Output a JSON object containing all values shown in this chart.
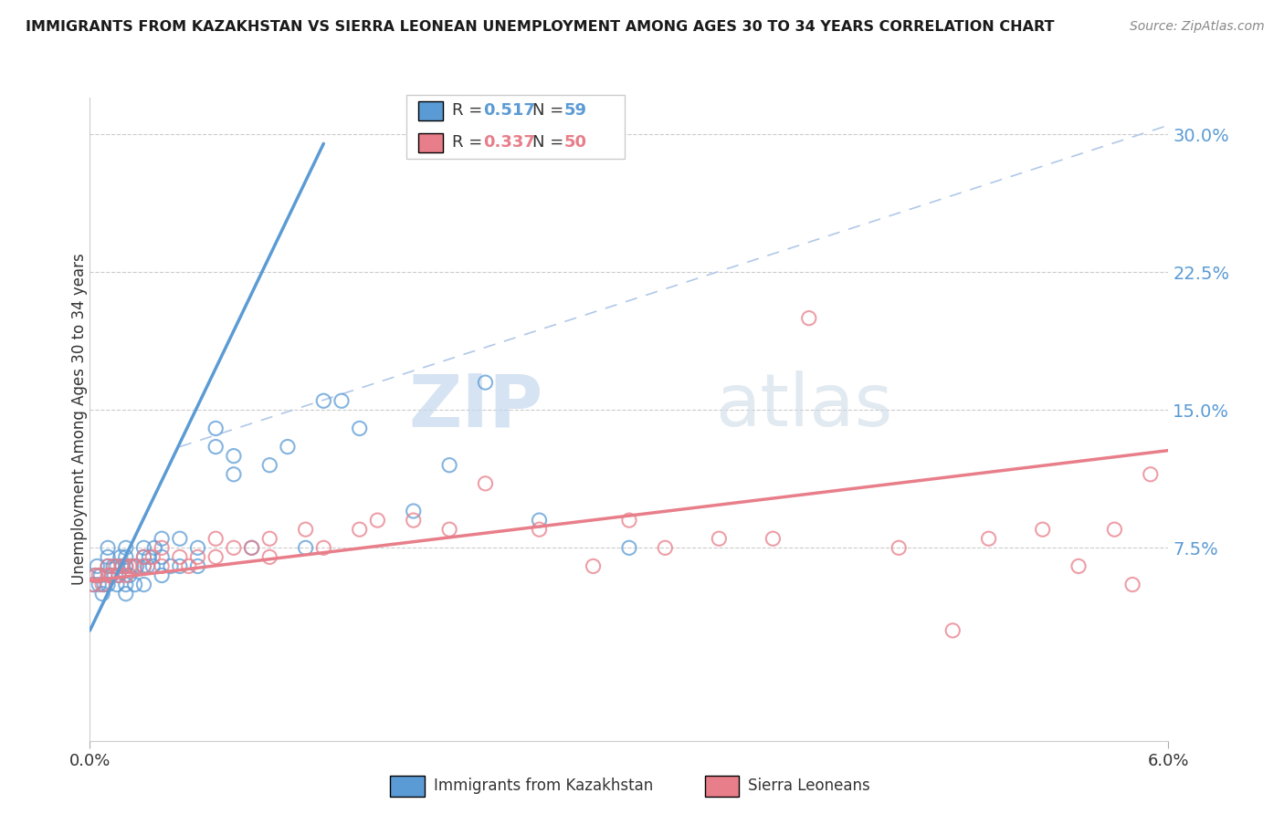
{
  "title": "IMMIGRANTS FROM KAZAKHSTAN VS SIERRA LEONEAN UNEMPLOYMENT AMONG AGES 30 TO 34 YEARS CORRELATION CHART",
  "source": "Source: ZipAtlas.com",
  "ylabel": "Unemployment Among Ages 30 to 34 years",
  "ytick_values": [
    0.0,
    0.075,
    0.15,
    0.225,
    0.3
  ],
  "ytick_labels": [
    "",
    "7.5%",
    "15.0%",
    "22.5%",
    "30.0%"
  ],
  "xmin": 0.0,
  "xmax": 0.06,
  "ymin": -0.03,
  "ymax": 0.32,
  "legend_r1": "0.517",
  "legend_n1": "59",
  "legend_r2": "0.337",
  "legend_n2": "50",
  "blue_color": "#5b9bd5",
  "pink_color": "#e87e8a",
  "diagonal_color": "#b0c8e8",
  "legend_label1": "Immigrants from Kazakhstan",
  "legend_label2": "Sierra Leoneans",
  "watermark_zip": "ZIP",
  "watermark_atlas": "atlas",
  "blue_scatter_x": [
    0.0002,
    0.0003,
    0.0004,
    0.0005,
    0.0006,
    0.0007,
    0.0008,
    0.001,
    0.001,
    0.001,
    0.001,
    0.0012,
    0.0013,
    0.0015,
    0.0015,
    0.0016,
    0.0017,
    0.0018,
    0.002,
    0.002,
    0.002,
    0.002,
    0.002,
    0.0022,
    0.0023,
    0.0025,
    0.0026,
    0.003,
    0.003,
    0.003,
    0.003,
    0.0032,
    0.0033,
    0.0035,
    0.0036,
    0.004,
    0.004,
    0.004,
    0.0045,
    0.005,
    0.005,
    0.006,
    0.006,
    0.007,
    0.007,
    0.008,
    0.008,
    0.009,
    0.01,
    0.011,
    0.012,
    0.013,
    0.014,
    0.015,
    0.018,
    0.02,
    0.022,
    0.025,
    0.03
  ],
  "blue_scatter_y": [
    0.055,
    0.06,
    0.065,
    0.055,
    0.06,
    0.05,
    0.055,
    0.055,
    0.065,
    0.07,
    0.075,
    0.06,
    0.065,
    0.055,
    0.065,
    0.06,
    0.07,
    0.065,
    0.05,
    0.055,
    0.065,
    0.07,
    0.075,
    0.06,
    0.065,
    0.055,
    0.065,
    0.055,
    0.065,
    0.07,
    0.075,
    0.065,
    0.07,
    0.065,
    0.075,
    0.06,
    0.07,
    0.08,
    0.065,
    0.065,
    0.08,
    0.065,
    0.075,
    0.13,
    0.14,
    0.115,
    0.125,
    0.075,
    0.12,
    0.13,
    0.075,
    0.155,
    0.155,
    0.14,
    0.095,
    0.12,
    0.165,
    0.09,
    0.075
  ],
  "pink_scatter_x": [
    0.0002,
    0.0003,
    0.0005,
    0.0007,
    0.001,
    0.001,
    0.0012,
    0.0014,
    0.0016,
    0.0018,
    0.002,
    0.002,
    0.0022,
    0.0025,
    0.003,
    0.003,
    0.0035,
    0.004,
    0.004,
    0.005,
    0.0055,
    0.006,
    0.007,
    0.007,
    0.008,
    0.009,
    0.01,
    0.01,
    0.012,
    0.013,
    0.015,
    0.016,
    0.018,
    0.02,
    0.022,
    0.025,
    0.028,
    0.03,
    0.032,
    0.035,
    0.038,
    0.04,
    0.045,
    0.048,
    0.05,
    0.053,
    0.055,
    0.057,
    0.058,
    0.059
  ],
  "pink_scatter_y": [
    0.055,
    0.06,
    0.06,
    0.055,
    0.06,
    0.065,
    0.06,
    0.065,
    0.06,
    0.065,
    0.06,
    0.065,
    0.065,
    0.065,
    0.065,
    0.07,
    0.07,
    0.065,
    0.075,
    0.07,
    0.065,
    0.07,
    0.07,
    0.08,
    0.075,
    0.075,
    0.07,
    0.08,
    0.085,
    0.075,
    0.085,
    0.09,
    0.09,
    0.085,
    0.11,
    0.085,
    0.065,
    0.09,
    0.075,
    0.08,
    0.08,
    0.2,
    0.075,
    0.03,
    0.08,
    0.085,
    0.065,
    0.085,
    0.055,
    0.115
  ],
  "blue_line_x": [
    0.0,
    0.013
  ],
  "blue_line_y": [
    0.03,
    0.295
  ],
  "pink_line_x": [
    0.0,
    0.06
  ],
  "pink_line_y": [
    0.057,
    0.128
  ],
  "diag_line_x": [
    0.005,
    0.06
  ],
  "diag_line_y": [
    0.13,
    0.305
  ]
}
